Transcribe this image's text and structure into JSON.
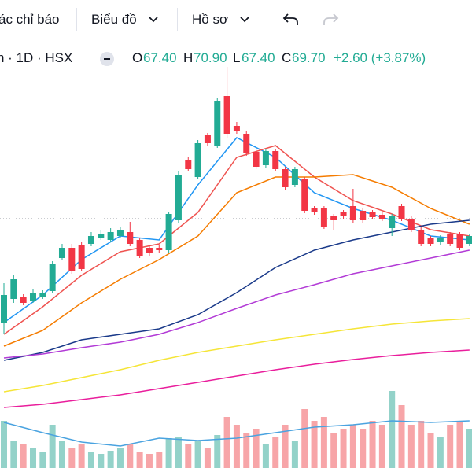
{
  "toolbar": {
    "items": [
      "ác chỉ báo",
      "Biểu đồ",
      "Hồ sơ"
    ]
  },
  "legend": {
    "symbol": "n · 1D · HSX",
    "open_label": "O",
    "open": "67.40",
    "high_label": "H",
    "high": "70.90",
    "low_label": "L",
    "low": "67.40",
    "close_label": "C",
    "close": "69.70",
    "change": "+2.60 (+3.87%)"
  },
  "chart_data": {
    "type": "candlestick",
    "ylim": [
      8,
      54
    ],
    "y2lim": [
      0,
      100
    ],
    "price_line": 32.2,
    "up_color": "#22ab94",
    "down_color": "#f23645",
    "volume_up_color": "#93d2c9",
    "volume_down_color": "#f7a5a8",
    "candles": {
      "open": [
        19.0,
        22.0,
        22.2,
        21.8,
        22.2,
        23.0,
        27.2,
        28.5,
        28.8,
        29.0,
        29.8,
        29.5,
        30.0,
        30.5,
        29.5,
        28.5,
        28.5,
        28.2,
        32.0,
        39.7,
        37.5,
        42.8,
        41.5,
        47.8,
        44.0,
        43.0,
        40.7,
        39.0,
        40.8,
        38.5,
        36.5,
        37.2,
        33.5,
        33.5,
        32.5,
        33.0,
        33.8,
        33.2,
        33.0,
        32.7,
        31.0,
        33.8,
        32.2,
        30.8,
        29.7,
        29.2,
        30.2,
        30.2,
        29.0
      ],
      "high": [
        24.0,
        25.0,
        22.6,
        23.2,
        23.1,
        26.8,
        29.0,
        29.0,
        29.2,
        30.5,
        30.8,
        31.0,
        31.2,
        31.8,
        29.8,
        28.8,
        28.8,
        33.1,
        38.2,
        40.0,
        42.2,
        43.1,
        47.5,
        51.5,
        44.5,
        43.3,
        41.0,
        41.1,
        41.1,
        38.8,
        38.8,
        37.5,
        33.8,
        33.8,
        32.8,
        33.3,
        36.0,
        33.5,
        33.3,
        33.0,
        32.8,
        34.1,
        32.5,
        31.1,
        30.0,
        30.1,
        30.5,
        30.5,
        30.3
      ],
      "low": [
        17.5,
        21.5,
        21.2,
        21.5,
        22.0,
        22.7,
        26.9,
        25.2,
        25.5,
        28.7,
        29.5,
        29.2,
        29.8,
        28.7,
        27.2,
        27.4,
        27.9,
        27.9,
        31.7,
        38.2,
        37.2,
        41.5,
        41.2,
        42.5,
        43.0,
        40.2,
        38.5,
        38.7,
        38.2,
        35.9,
        36.2,
        32.9,
        32.7,
        30.9,
        30.8,
        32.2,
        31.7,
        31.7,
        32.1,
        31.9,
        30.0,
        31.9,
        30.5,
        28.7,
        28.7,
        28.9,
        28.7,
        28.2,
        28.7
      ],
      "close": [
        22.5,
        24.5,
        21.5,
        22.8,
        22.8,
        26.5,
        28.5,
        25.5,
        25.8,
        30.0,
        30.2,
        30.5,
        30.7,
        29.0,
        27.5,
        27.8,
        28.2,
        32.8,
        37.8,
        38.5,
        41.8,
        41.8,
        47.2,
        43.0,
        43.3,
        40.5,
        38.8,
        40.8,
        38.5,
        36.2,
        38.5,
        33.2,
        33.0,
        31.2,
        32.0,
        32.5,
        32.0,
        32.0,
        32.4,
        32.2,
        32.5,
        32.2,
        30.8,
        29.0,
        29.0,
        29.8,
        29.0,
        28.5,
        30.0
      ]
    },
    "volume": [
      60,
      35,
      30,
      25,
      20,
      55,
      35,
      25,
      30,
      20,
      18,
      22,
      25,
      30,
      20,
      18,
      20,
      38,
      40,
      30,
      35,
      25,
      42,
      65,
      55,
      45,
      50,
      30,
      40,
      55,
      35,
      75,
      60,
      65,
      45,
      50,
      55,
      50,
      60,
      55,
      98,
      80,
      55,
      60,
      45,
      40,
      55,
      60,
      50
    ],
    "lines": {
      "x": [
        0,
        4,
        8,
        12,
        16,
        20,
        24,
        28,
        32,
        36,
        40,
        44,
        48
      ],
      "series": [
        {
          "color": "#2196f3",
          "values": [
            19.0,
            22.5,
            27.0,
            30.0,
            29.5,
            36.5,
            42.5,
            40.0,
            35.5,
            33.5,
            32.0,
            30.0,
            29.5
          ]
        },
        {
          "color": "#ef5350",
          "values": [
            17.5,
            21.0,
            25.0,
            28.0,
            29.0,
            33.0,
            40.0,
            41.5,
            37.5,
            34.5,
            32.8,
            30.8,
            30.0
          ]
        },
        {
          "color": "#f57c00",
          "values": [
            16.0,
            18.0,
            21.5,
            24.5,
            27.0,
            30.0,
            35.5,
            37.5,
            37.5,
            37.8,
            36.2,
            33.5,
            31.5
          ]
        },
        {
          "color": "#1a3a8a",
          "values": [
            14.2,
            15.2,
            16.8,
            17.5,
            18.2,
            20.0,
            22.8,
            26.0,
            28.2,
            29.5,
            30.5,
            31.5,
            32.0
          ]
        },
        {
          "color": "#b23bd6",
          "values": [
            14.5,
            15.0,
            15.8,
            16.5,
            17.5,
            19.0,
            20.8,
            22.5,
            23.8,
            25.2,
            26.2,
            27.2,
            28.2
          ]
        },
        {
          "color": "#f5e538",
          "values": [
            10.2,
            11.0,
            12.0,
            13.0,
            14.2,
            15.2,
            16.0,
            16.8,
            17.5,
            18.2,
            18.8,
            19.2,
            19.5
          ]
        },
        {
          "color": "#e91e9c",
          "values": [
            8.2,
            8.6,
            9.2,
            9.8,
            10.6,
            11.4,
            12.2,
            13.0,
            13.7,
            14.3,
            14.8,
            15.2,
            15.5
          ]
        }
      ]
    },
    "volume_ma": {
      "color": "#4aa3e0",
      "axis": "y2",
      "values": [
        58,
        45,
        33,
        28,
        38,
        35,
        38,
        45,
        52,
        55,
        60,
        58,
        60
      ]
    }
  }
}
